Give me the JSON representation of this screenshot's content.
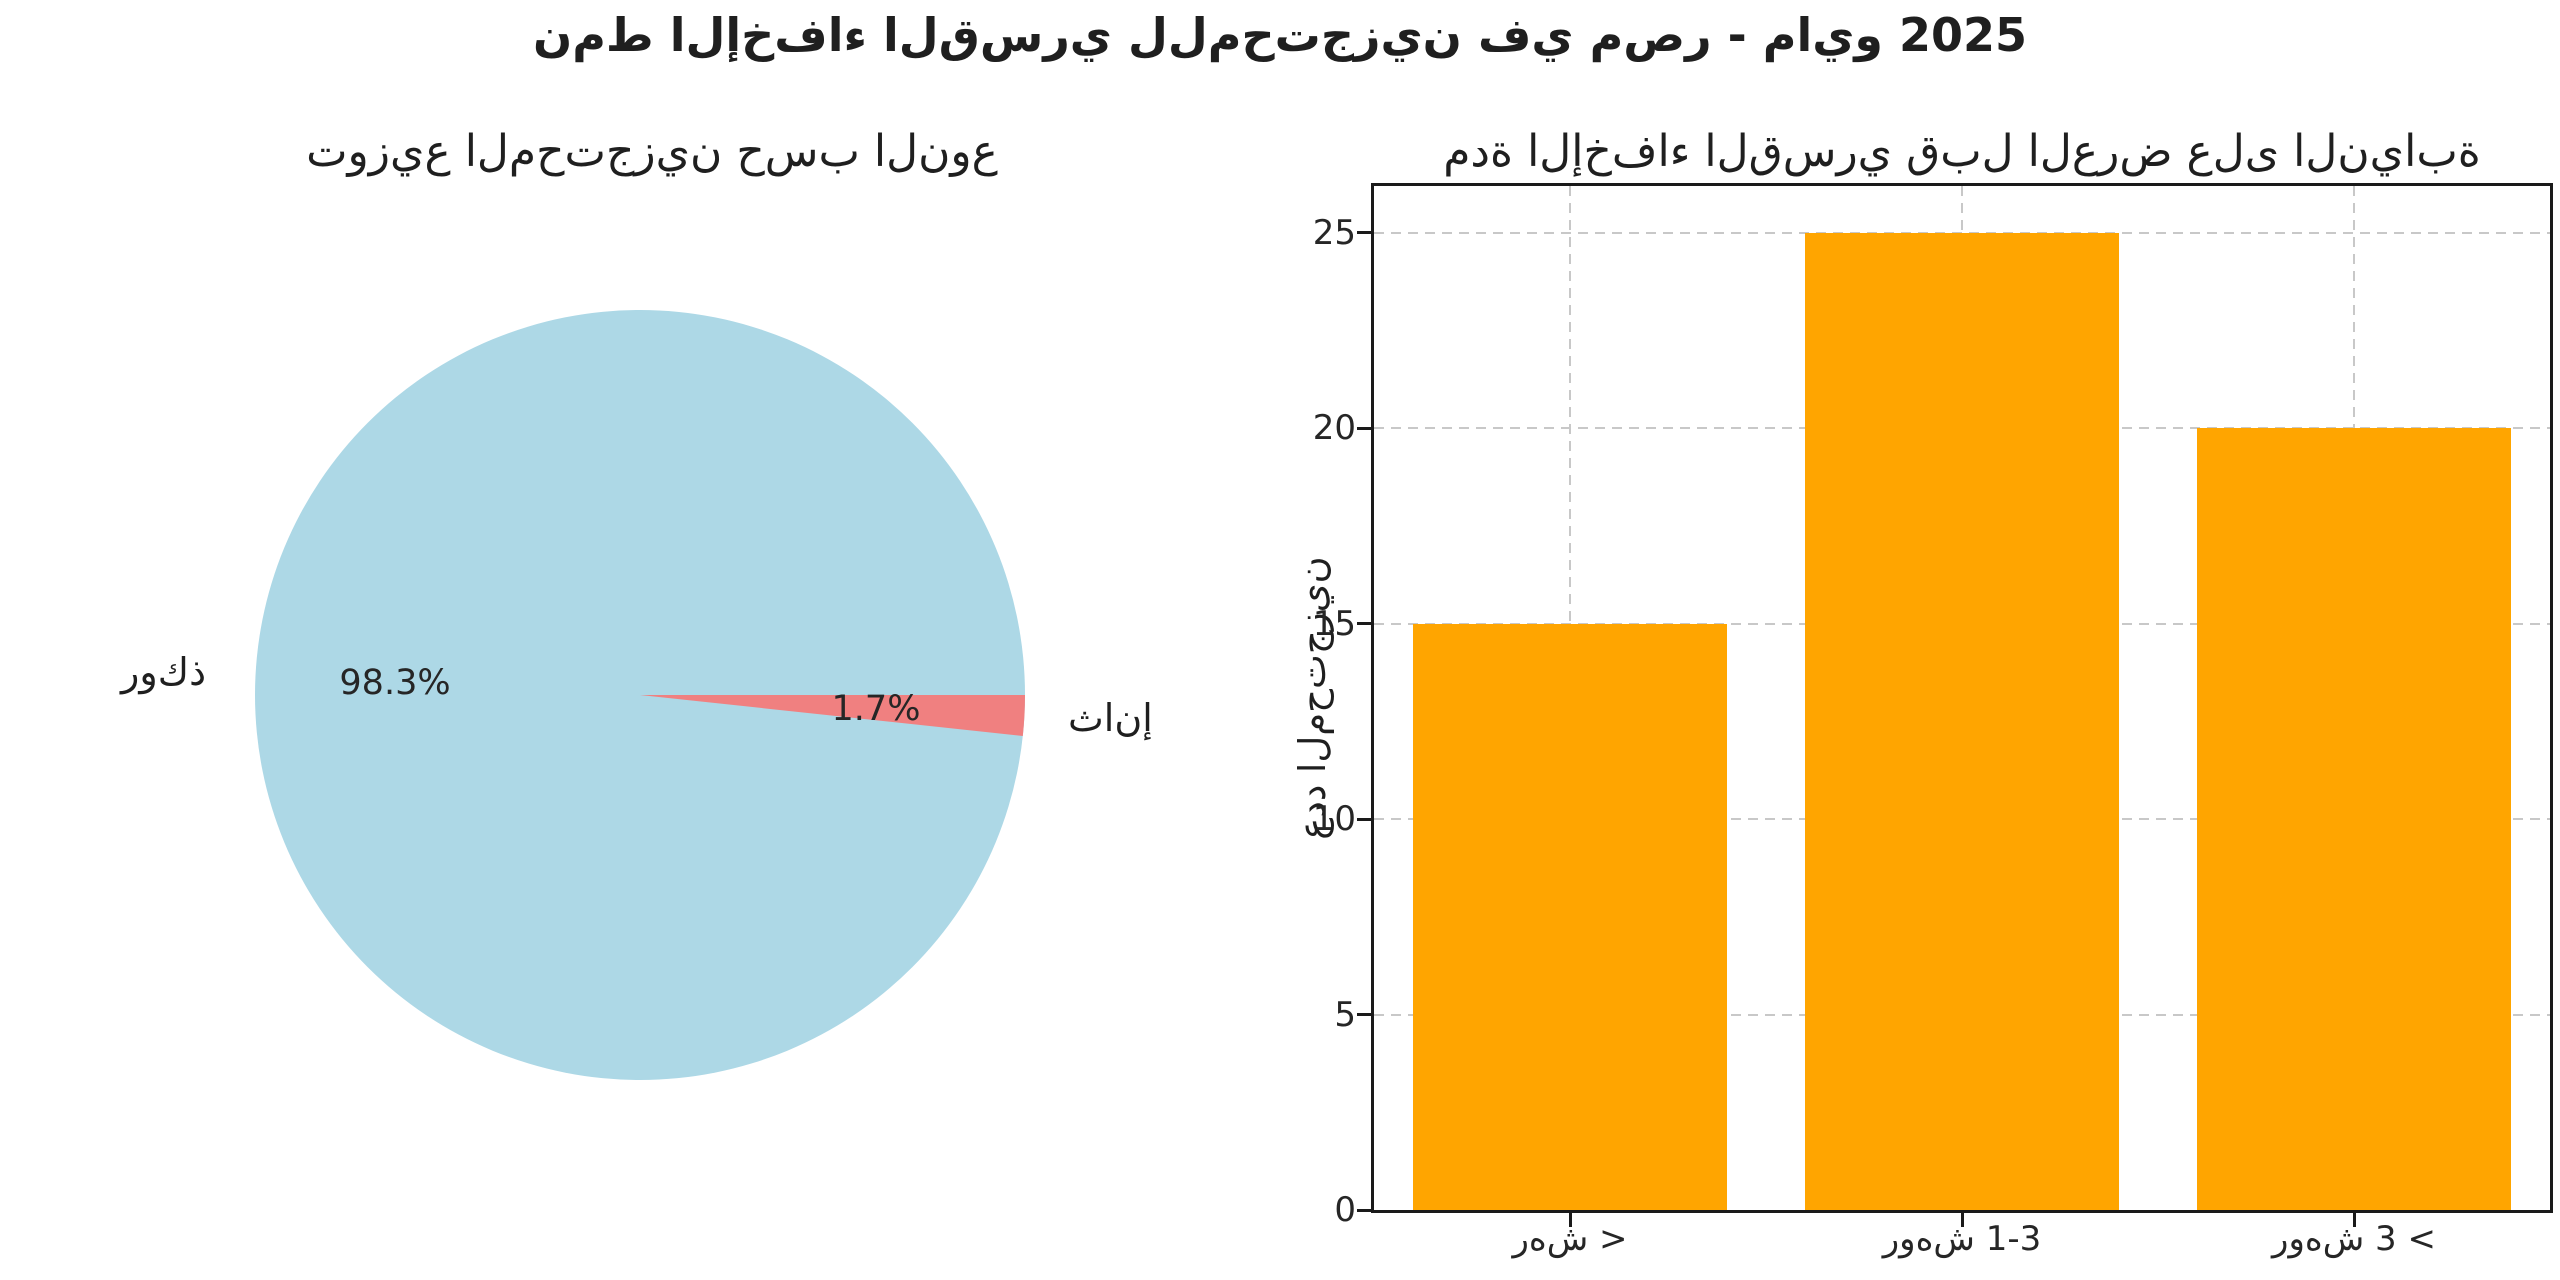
{
  "figure_title": "نمط الإخفاء القسري للمحتجزين في مصر - مايو 2025",
  "colors": {
    "pie_male": "#ADD8E6",
    "pie_female": "#F08080",
    "bar": "#FFA500",
    "text": "#1a1a1a",
    "grid": "#c8c8c8"
  },
  "chart_data": [
    {
      "type": "pie",
      "title": "توزيع المحتجزين حسب النوع",
      "labels": [
        "ذكور",
        "إناث"
      ],
      "values": [
        98.3,
        1.7
      ],
      "pct_labels": [
        "98.3%",
        "1.7%"
      ],
      "colors": [
        "#ADD8E6",
        "#F08080"
      ],
      "start_angle_deg": 0,
      "direction": "counterclockwise",
      "legend_position": "none"
    },
    {
      "type": "bar",
      "title": "مدة الإخفاء القسري قبل العرض على النيابة",
      "categories": [
        "< شهر",
        "1-3 شهور",
        "> 3 شهور"
      ],
      "values": [
        15,
        25,
        20
      ],
      "xlabel": "",
      "ylabel": "عدد المحتجزين",
      "yticks": [
        0,
        5,
        10,
        15,
        20,
        25
      ],
      "ylim": [
        0,
        26.2
      ],
      "grid": "dashed",
      "bar_color": "#FFA500",
      "legend_position": "none"
    }
  ]
}
